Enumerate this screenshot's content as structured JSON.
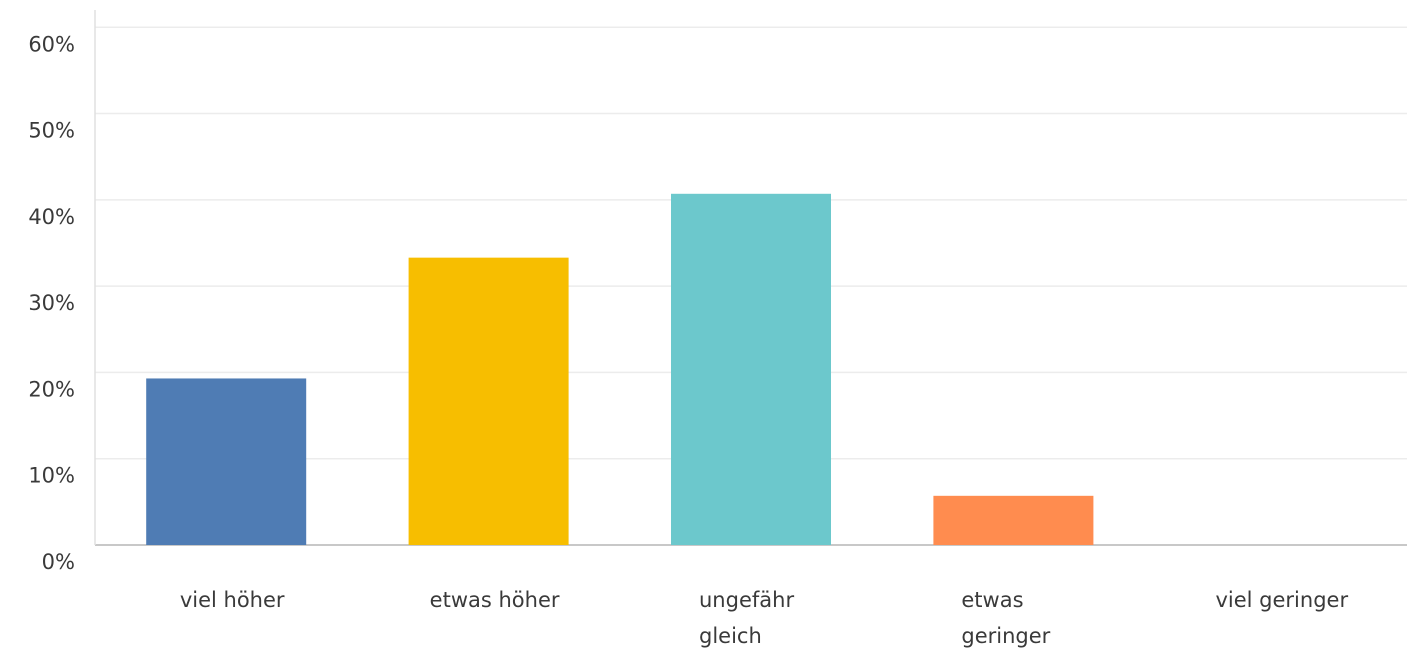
{
  "chart_data": {
    "type": "bar",
    "categories": [
      "viel höher",
      "etwas höher",
      "ungefähr gleich",
      "etwas geringer",
      "viel geringer"
    ],
    "values": [
      19.3,
      33.3,
      40.7,
      5.7,
      0
    ],
    "colors": [
      "#4f7cb4",
      "#f7be00",
      "#6cc8cc",
      "#ff8c4f",
      "#8a6fb8"
    ],
    "ylim": [
      0,
      62
    ],
    "yticks": [
      {
        "value": 0,
        "label": "0%"
      },
      {
        "value": 10,
        "label": "10%"
      },
      {
        "value": 20,
        "label": "20%"
      },
      {
        "value": 30,
        "label": "30%"
      },
      {
        "value": 40,
        "label": "40%"
      },
      {
        "value": 50,
        "label": "50%"
      },
      {
        "value": 60,
        "label": "60%"
      }
    ],
    "grid": true
  }
}
